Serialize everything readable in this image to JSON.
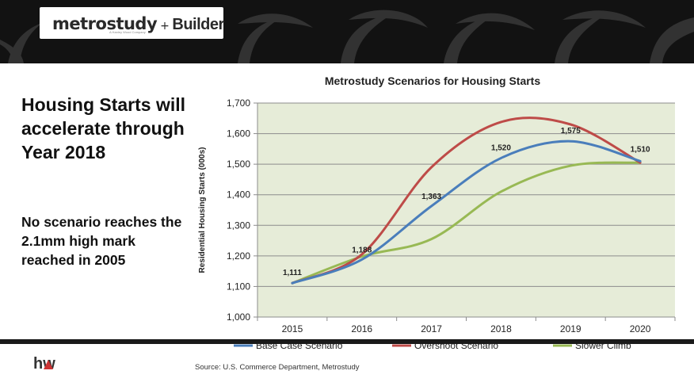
{
  "header": {
    "logo_metrostudy": "metrostudy",
    "logo_sub": "A Hanley Wood Company",
    "logo_plus": "+",
    "logo_builder": "Builder"
  },
  "slide": {
    "headline": "Housing Starts will accelerate through Year 2018",
    "subline": "No scenario reaches the 2.1mm high mark reached in 2005",
    "source": "Source: U.S. Commerce Department, Metrostudy",
    "footer_logo": "hw"
  },
  "colors": {
    "plot_bg": "#E6ECD8",
    "base": "#4A7EBB",
    "overshoot": "#BE4B48",
    "slower": "#98B954"
  },
  "chart_data": {
    "type": "line",
    "title": "Metrostudy Scenarios for Housing Starts",
    "ylabel": "Residential Housing Starts (000s)",
    "xlabel": "",
    "categories": [
      "2015",
      "2016",
      "2017",
      "2018",
      "2019",
      "2020"
    ],
    "ylim": [
      1000,
      1700
    ],
    "yticks": [
      1000,
      1100,
      1200,
      1300,
      1400,
      1500,
      1600,
      1700
    ],
    "ytick_labels": [
      "1,000",
      "1,100",
      "1,200",
      "1,300",
      "1,400",
      "1,500",
      "1,600",
      "1,700"
    ],
    "grid": true,
    "legend_position": "bottom",
    "series": [
      {
        "name": "Base Case Scenario",
        "color": "#4A7EBB",
        "values": [
          1111,
          1188,
          1363,
          1520,
          1575,
          1510
        ],
        "point_labels": [
          "1,111",
          "1,188",
          "1,363",
          "1,520",
          "1,575",
          "1,510"
        ]
      },
      {
        "name": "Overshoot Scenario",
        "color": "#BE4B48",
        "values": [
          1111,
          1205,
          1490,
          1638,
          1630,
          1505
        ]
      },
      {
        "name": "Slower Climb",
        "color": "#98B954",
        "values": [
          1111,
          1198,
          1255,
          1410,
          1495,
          1505
        ]
      }
    ]
  }
}
